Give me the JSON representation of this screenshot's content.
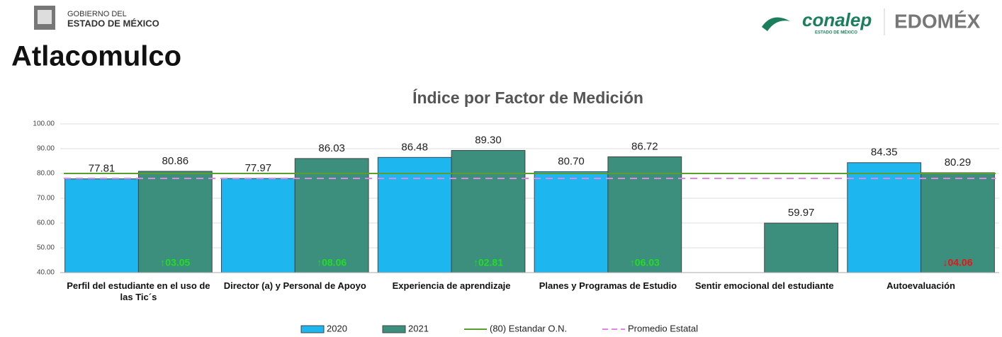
{
  "header": {
    "gov_line1": "GOBIERNO DEL",
    "gov_line2": "ESTADO DE MÉXICO",
    "brand": "conalep",
    "brand_sub": "ESTADO DE MÉXICO",
    "edomex": "EDOMÉX",
    "page_title": "Atlacomulco"
  },
  "chart_data": {
    "type": "bar",
    "title": "Índice por Factor de Medición",
    "categories": [
      "Perfil del estudiante en el uso de las Tic´s",
      "Director (a) y Personal de Apoyo",
      "Experiencia de aprendizaje",
      "Planes y Programas de Estudio",
      "Sentir emocional del estudiante",
      "Autoevaluación"
    ],
    "series": [
      {
        "name": "2020",
        "color": "#1db6ef",
        "values": [
          77.81,
          77.97,
          86.48,
          80.7,
          null,
          84.35
        ],
        "value_labels": [
          "77.81",
          "77.97",
          "86.48",
          "80.70",
          null,
          "84.35"
        ]
      },
      {
        "name": "2021",
        "color": "#3b8f7c",
        "values": [
          80.86,
          86.03,
          89.3,
          86.72,
          59.97,
          80.29
        ],
        "value_labels": [
          "80.86",
          "86.03",
          "89.30",
          "86.72",
          "59.97",
          "80.29"
        ]
      }
    ],
    "differences": [
      "↑03.05",
      "↑08.06",
      "↑02.81",
      "↑06.03",
      null,
      "↓04.06"
    ],
    "difference_colors": [
      "#22dd22",
      "#22dd22",
      "#22dd22",
      "#22dd22",
      null,
      "#ee1111"
    ],
    "lines": [
      {
        "name": "(80) Estandar O.N.",
        "value": 80,
        "color": "#5a9e2e",
        "dashed": false
      },
      {
        "name": "Promedio  Estatal",
        "value": 78,
        "color": "#e683e6",
        "dashed": true
      }
    ],
    "ylim": [
      40,
      100
    ],
    "yticks": [
      {
        "value": 40,
        "label": "40.00"
      },
      {
        "value": 50,
        "label": "50.00"
      },
      {
        "value": 60,
        "label": "60.00"
      },
      {
        "value": 70,
        "label": "70.00"
      },
      {
        "value": 80,
        "label": "80.00"
      },
      {
        "value": 90,
        "label": "90.00"
      },
      {
        "value": 100,
        "label": "100.00"
      }
    ],
    "grid": true
  }
}
